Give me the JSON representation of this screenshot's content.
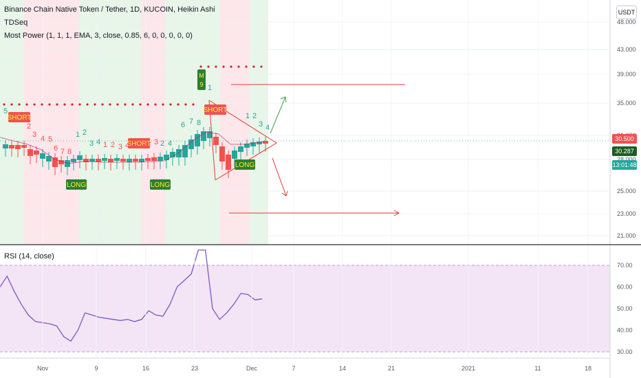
{
  "legend": {
    "line1": "Binance Chain Native Token / Tether, 1D, KUCOIN, Heikin Ashi",
    "line2": "TDSeq",
    "line3": "Most Power (1, 1, 1, EMA, 3, close, 0.85, 6, 0, 0, 0, 0, 0)"
  },
  "rsi_label": "RSI (14, close)",
  "currency_button": "USDT",
  "price_tags": {
    "last": "30.500",
    "ema": "30.287",
    "countdown": "13:01:48"
  },
  "signals": {
    "short": "SHORT",
    "long": "LONG",
    "m": "M",
    "nine": "9"
  },
  "colors": {
    "bull": "#26a69a",
    "bear": "#ef5350",
    "bg_green": "#e8f5e9",
    "bg_red": "#fde7ea",
    "rsi_line": "#7e57c2",
    "rsi_band": "#f3e5f5",
    "drawing": "#e53935",
    "drawing_up": "#43a047"
  },
  "chart_data": [
    {
      "type": "candlestick",
      "y_ticks": [
        "48.000",
        "43.000",
        "39.000",
        "35.000",
        "31.000",
        "28.000",
        "25.000",
        "23.000",
        "21.000"
      ],
      "ylim": [
        20,
        49
      ],
      "x_ticks": [
        "Nov",
        "9",
        "16",
        "23",
        "Dec",
        "7",
        "14",
        "21",
        "2021",
        "11",
        "18"
      ],
      "resistance_levels": [
        35.0,
        40.0
      ],
      "last_price": 30.5,
      "ema_value": 30.287,
      "countdown": "13:01:48",
      "td_counts": [
        "5",
        "1",
        "2",
        "3",
        "4",
        "5",
        "6",
        "7",
        "8",
        "1",
        "2",
        "3",
        "4",
        "1",
        "2",
        "3",
        "4",
        "1",
        "2",
        "3",
        "4",
        "5",
        "6",
        "7",
        "8",
        "1",
        "2",
        "3",
        "4"
      ]
    },
    {
      "type": "line",
      "title": "RSI (14, close)",
      "y_ticks": [
        "70.00",
        "60.00",
        "50.00",
        "40.00",
        "30.00"
      ],
      "ylim": [
        28,
        78
      ],
      "band": [
        30,
        70
      ],
      "values": [
        60,
        65,
        58,
        52,
        47,
        44,
        43.5,
        43,
        42,
        37,
        35,
        40,
        48,
        47,
        46,
        45.5,
        45,
        44.5,
        45,
        44,
        45,
        49,
        47,
        46.5,
        52,
        60,
        63,
        66,
        77,
        77,
        50,
        45,
        48,
        52,
        57,
        56.5,
        54,
        54.5
      ]
    }
  ]
}
